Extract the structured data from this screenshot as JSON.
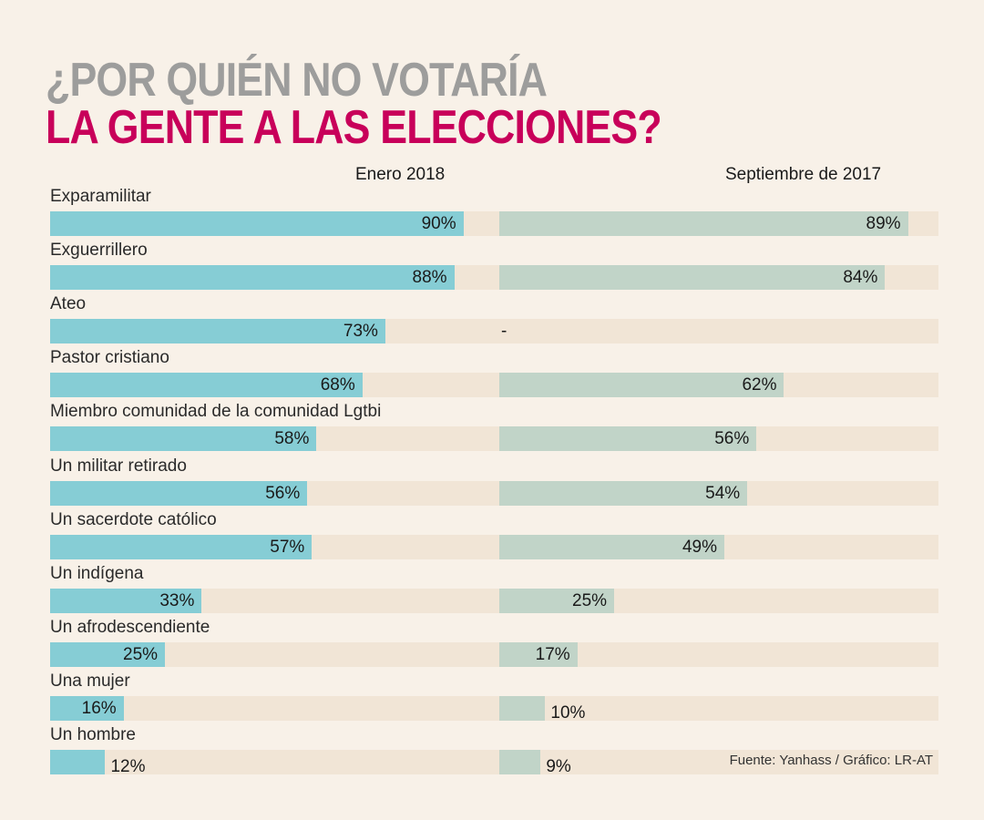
{
  "title": {
    "line1": "¿POR QUIÉN NO VOTARÍA",
    "line2": "LA GENTE A LAS ELECCIONES?"
  },
  "colors": {
    "title_gray": "#9d9d9c",
    "title_magenta": "#c8005a",
    "bar_enero_2018": "#86cdd5",
    "bar_septiembre_2017": "#c1d4c8",
    "track": "#f1e5d6",
    "background": "#f8f1e8"
  },
  "source": "Fuente: Yanhass / Gráfico: LR-AT",
  "chart_data": {
    "type": "bar",
    "orientation": "horizontal",
    "title": "¿POR QUIÉN NO VOTARÍA LA GENTE A LAS ELECCIONES?",
    "xlabel": "",
    "ylabel": "",
    "xlim": [
      0,
      100
    ],
    "unit": "%",
    "grid": false,
    "categories": [
      "Exparamilitar",
      "Exguerrillero",
      "Ateo",
      "Pastor cristiano",
      "Miembro comunidad de la comunidad Lgtbi",
      "Un militar retirado",
      "Un sacerdote católico",
      "Un indígena",
      "Un afrodescendiente",
      "Una mujer",
      "Un hombre"
    ],
    "series": [
      {
        "name": "Enero 2018",
        "values": [
          90,
          88,
          73,
          68,
          58,
          56,
          57,
          33,
          25,
          16,
          12
        ],
        "labels": [
          "90%",
          "88%",
          "73%",
          "68%",
          "58%",
          "56%",
          "57%",
          "33%",
          "25%",
          "16%",
          "12%"
        ]
      },
      {
        "name": "Septiembre de 2017",
        "values": [
          89,
          84,
          null,
          62,
          56,
          54,
          49,
          25,
          17,
          10,
          9
        ],
        "labels": [
          "89%",
          "84%",
          "-",
          "62%",
          "56%",
          "54%",
          "49%",
          "25%",
          "17%",
          "10%",
          "9%"
        ]
      }
    ],
    "source": "Fuente: Yanhass / Gráfico: LR-AT"
  }
}
